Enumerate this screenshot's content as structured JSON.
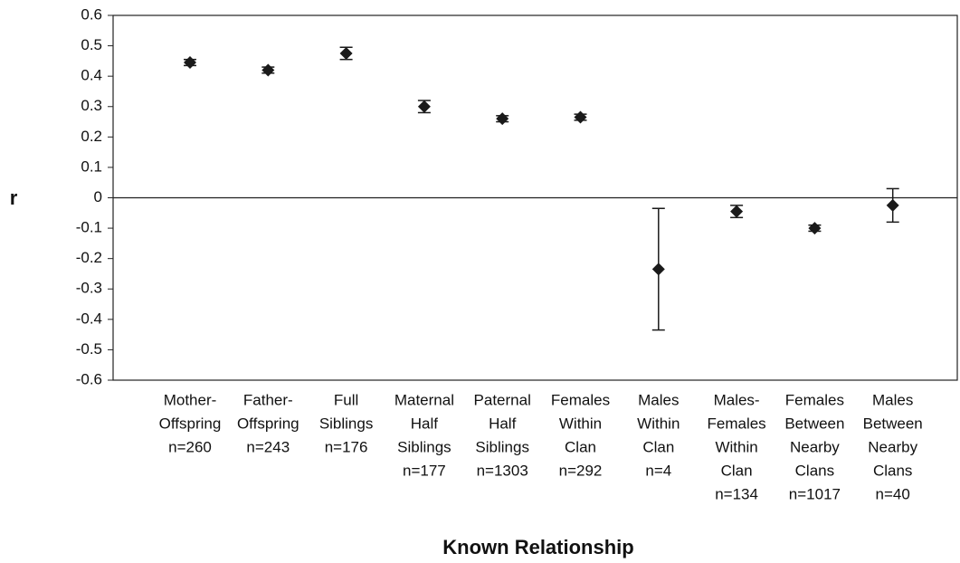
{
  "chart_data": {
    "type": "errorbar",
    "xlabel": "Known Relationship",
    "ylabel": "r",
    "categories": [
      [
        "Mother-",
        "Offspring",
        "n=260"
      ],
      [
        "Father-",
        "Offspring",
        "n=243"
      ],
      [
        "Full",
        "Siblings",
        "n=176"
      ],
      [
        "Maternal",
        "Half",
        "Siblings",
        "n=177"
      ],
      [
        "Paternal",
        "Half",
        "Siblings",
        "n=1303"
      ],
      [
        "Females",
        "Within",
        "Clan",
        "n=292"
      ],
      [
        "Males",
        "Within",
        "Clan",
        "n=4"
      ],
      [
        "Males-",
        "Females",
        "Within",
        "Clan",
        "n=134"
      ],
      [
        "Females",
        "Between",
        "Nearby",
        "Clans",
        "n=1017"
      ],
      [
        "Males",
        "Between",
        "Nearby",
        "Clans",
        "n=40"
      ]
    ],
    "values": [
      0.445,
      0.42,
      0.475,
      0.3,
      0.26,
      0.265,
      -0.235,
      -0.045,
      -0.1,
      -0.025
    ],
    "errors": [
      0.01,
      0.01,
      0.02,
      0.02,
      0.01,
      0.01,
      0.2,
      0.02,
      0.01,
      0.055
    ],
    "color": "#1a1a1a",
    "ylim": [
      -0.6,
      0.6
    ],
    "yticks": [
      -0.6,
      -0.5,
      -0.4,
      -0.3,
      -0.2,
      -0.1,
      0,
      0.1,
      0.2,
      0.3,
      0.4,
      0.5,
      0.6
    ]
  }
}
